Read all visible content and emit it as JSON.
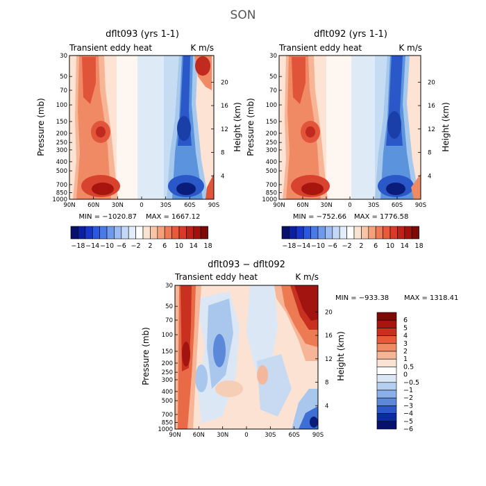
{
  "figure": {
    "title": "SON"
  },
  "chart_data": [
    {
      "type": "heatmap",
      "title": "dflt093 (yrs 1-1)",
      "subtitle_left": "Transient eddy heat",
      "subtitle_right": "K m/s",
      "xlabel": "",
      "ylabel": "Pressure (mb)",
      "ylabel_right": "Height (km)",
      "x_ticks": [
        "90N",
        "60N",
        "30N",
        "0",
        "30S",
        "60S",
        "90S"
      ],
      "y_ticks": [
        "30",
        "50",
        "70",
        "100",
        "150",
        "200",
        "250",
        "300",
        "400",
        "500",
        "700",
        "850",
        "1000"
      ],
      "y_right_ticks": [
        "20",
        "16",
        "12",
        "8",
        "4"
      ],
      "min_label": "MIN = −1020.87",
      "max_label": "MAX = 1667.12",
      "colorbar_labels": [
        "−18",
        "−14",
        "−10",
        "−6",
        "−2",
        "2",
        "6",
        "10",
        "14",
        "18"
      ],
      "features": [
        {
          "lat": 55,
          "p": 200,
          "value": 14
        },
        {
          "lat": 52,
          "p": 850,
          "value": 18
        },
        {
          "lat": 60,
          "p": 50,
          "value": 10
        },
        {
          "lat": -58,
          "p": 200,
          "value": -16
        },
        {
          "lat": -60,
          "p": 850,
          "value": -18
        },
        {
          "lat": -82,
          "p": 40,
          "value": 18
        },
        {
          "lat": -88,
          "p": 900,
          "value": 8
        }
      ]
    },
    {
      "type": "heatmap",
      "title": "dflt092 (yrs 1-1)",
      "subtitle_left": "Transient eddy heat",
      "subtitle_right": "K m/s",
      "xlabel": "",
      "ylabel": "Pressure (mb)",
      "ylabel_right": "Height (km)",
      "x_ticks": [
        "90N",
        "60N",
        "30N",
        "0",
        "30S",
        "60S",
        "90S"
      ],
      "y_ticks": [
        "30",
        "50",
        "70",
        "100",
        "150",
        "200",
        "250",
        "300",
        "400",
        "500",
        "700",
        "850",
        "1000"
      ],
      "y_right_ticks": [
        "20",
        "16",
        "12",
        "8",
        "4"
      ],
      "min_label": "MIN = −752.66",
      "max_label": "MAX = 1776.58",
      "colorbar_labels": [
        "−18",
        "−14",
        "−10",
        "−6",
        "−2",
        "2",
        "6",
        "10",
        "14",
        "18"
      ],
      "features": [
        {
          "lat": 55,
          "p": 200,
          "value": 14
        },
        {
          "lat": 52,
          "p": 850,
          "value": 18
        },
        {
          "lat": 60,
          "p": 50,
          "value": 10
        },
        {
          "lat": -58,
          "p": 200,
          "value": -16
        },
        {
          "lat": -60,
          "p": 850,
          "value": -18
        },
        {
          "lat": -84,
          "p": 60,
          "value": -6
        },
        {
          "lat": -88,
          "p": 900,
          "value": 10
        }
      ]
    },
    {
      "type": "heatmap",
      "title": "dflt093 − dflt092",
      "subtitle_left": "Transient eddy heat",
      "subtitle_right": "K m/s",
      "xlabel": "",
      "ylabel": "Pressure (mb)",
      "ylabel_right": "Height (km)",
      "x_ticks": [
        "90N",
        "60N",
        "30N",
        "0",
        "30S",
        "60S",
        "90S"
      ],
      "y_ticks": [
        "30",
        "50",
        "70",
        "100",
        "150",
        "200",
        "250",
        "300",
        "400",
        "500",
        "700",
        "850",
        "1000"
      ],
      "y_right_ticks": [
        "20",
        "16",
        "12",
        "8",
        "4"
      ],
      "min_label": "MIN = −933.38",
      "max_label": "MAX = 1318.41",
      "colorbar_labels": [
        "6",
        "5",
        "4",
        "3",
        "2",
        "1",
        "0.5",
        "0",
        "−0.5",
        "−1",
        "−2",
        "−3",
        "−4",
        "−5",
        "−6"
      ],
      "features": [
        {
          "lat": 72,
          "p": 150,
          "value": 6
        },
        {
          "lat": -72,
          "p": 45,
          "value": 6
        },
        {
          "lat": 30,
          "p": 120,
          "value": -3
        },
        {
          "lat": -60,
          "p": 850,
          "value": -5
        },
        {
          "lat": -30,
          "p": 300,
          "value": 1
        }
      ]
    }
  ]
}
